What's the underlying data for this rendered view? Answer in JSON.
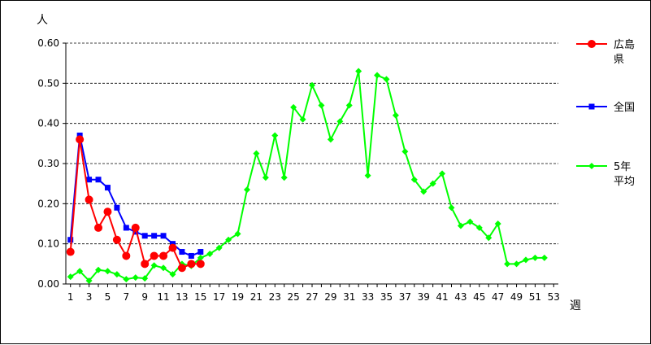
{
  "chart_data": {
    "type": "line",
    "y_unit_label": "人",
    "x_unit_label": "週",
    "ylim": [
      0,
      0.6
    ],
    "y_ticks": [
      "0.00",
      "0.10",
      "0.20",
      "0.30",
      "0.40",
      "0.50",
      "0.60"
    ],
    "x_range": [
      1,
      53
    ],
    "x_ticks": [
      "1",
      "3",
      "5",
      "7",
      "9",
      "11",
      "13",
      "15",
      "17",
      "19",
      "21",
      "23",
      "25",
      "27",
      "29",
      "31",
      "33",
      "35",
      "37",
      "39",
      "41",
      "43",
      "45",
      "47",
      "49",
      "51",
      "53"
    ],
    "grid": "horizontal dashed",
    "legend_position": "right",
    "series": [
      {
        "name": "広島県",
        "color": "#ff0000",
        "marker": "circle",
        "x": [
          1,
          2,
          3,
          4,
          5,
          6,
          7,
          8,
          9,
          10,
          11,
          12,
          13,
          14,
          15
        ],
        "values": [
          0.08,
          0.36,
          0.21,
          0.14,
          0.18,
          0.11,
          0.07,
          0.14,
          0.05,
          0.07,
          0.07,
          0.09,
          0.04,
          0.05,
          0.05
        ]
      },
      {
        "name": "全国",
        "color": "#0000ff",
        "marker": "square",
        "x": [
          1,
          2,
          3,
          4,
          5,
          6,
          7,
          8,
          9,
          10,
          11,
          12,
          13,
          14,
          15
        ],
        "values": [
          0.11,
          0.37,
          0.26,
          0.26,
          0.24,
          0.19,
          0.14,
          0.13,
          0.12,
          0.12,
          0.12,
          0.1,
          0.08,
          0.07,
          0.08
        ]
      },
      {
        "name": "5年平均",
        "color": "#00ff00",
        "marker": "diamond",
        "x": [
          1,
          2,
          3,
          4,
          5,
          6,
          7,
          8,
          9,
          10,
          11,
          12,
          13,
          14,
          15,
          16,
          17,
          18,
          19,
          20,
          21,
          22,
          23,
          24,
          25,
          26,
          27,
          28,
          29,
          30,
          31,
          32,
          33,
          34,
          35,
          36,
          37,
          38,
          39,
          40,
          41,
          42,
          43,
          44,
          45,
          46,
          47,
          48,
          49,
          50,
          51,
          52
        ],
        "values": [
          0.018,
          0.032,
          0.008,
          0.035,
          0.032,
          0.024,
          0.012,
          0.016,
          0.014,
          0.046,
          0.04,
          0.024,
          0.05,
          0.045,
          0.065,
          0.075,
          0.09,
          0.11,
          0.125,
          0.235,
          0.325,
          0.265,
          0.37,
          0.265,
          0.44,
          0.41,
          0.495,
          0.445,
          0.36,
          0.405,
          0.445,
          0.53,
          0.27,
          0.52,
          0.51,
          0.42,
          0.33,
          0.26,
          0.23,
          0.25,
          0.275,
          0.19,
          0.145,
          0.155,
          0.14,
          0.115,
          0.15,
          0.05,
          0.05,
          0.06,
          0.065,
          0.065
        ]
      }
    ],
    "legend": [
      {
        "series": 0,
        "lines": [
          "広島",
          "県"
        ]
      },
      {
        "series": 1,
        "lines": [
          "全国"
        ]
      },
      {
        "series": 2,
        "lines": [
          "5年",
          "平均"
        ]
      }
    ]
  }
}
